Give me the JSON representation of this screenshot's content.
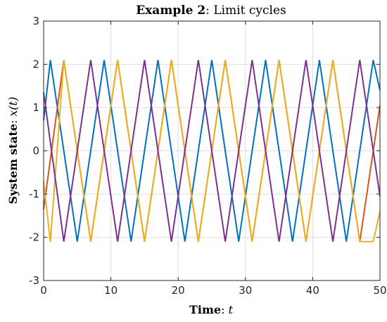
{
  "chart_data": {
    "type": "line",
    "title": {
      "bold": "Example 2",
      "rest": ": Limit cycles"
    },
    "xlabel": {
      "bold": "Time",
      "sep": ": ",
      "var": "t"
    },
    "ylabel": {
      "bold": "System state",
      "sep": ": ",
      "var": "x(t)"
    },
    "xlim": [
      0,
      50
    ],
    "ylim": [
      -3,
      3
    ],
    "xticks": [
      0,
      10,
      20,
      30,
      40,
      50
    ],
    "yticks": [
      -3,
      -2,
      -1,
      0,
      1,
      2,
      3
    ],
    "xtick_labels": [
      "0",
      "10",
      "20",
      "30",
      "40",
      "50"
    ],
    "ytick_labels": [
      "-3",
      "-2",
      "-1",
      "0",
      "1",
      "2",
      "3"
    ],
    "grid": true,
    "legend": "none",
    "series": [
      {
        "color": "#0072BD",
        "x": [
          0,
          1,
          5,
          9,
          13,
          17,
          21,
          25,
          29,
          33,
          37,
          41,
          45,
          49,
          50
        ],
        "y": [
          0.7,
          2.1,
          -2.1,
          2.1,
          -2.1,
          2.1,
          -2.1,
          2.1,
          -2.1,
          2.1,
          -2.1,
          2.1,
          -2.1,
          2.1,
          1.4
        ]
      },
      {
        "color": "#D95319",
        "x": [
          0,
          3,
          7,
          11,
          15,
          19,
          23,
          27,
          31,
          35,
          39,
          43,
          47,
          50
        ],
        "y": [
          -1.35,
          2.1,
          -2.1,
          2.1,
          -2.1,
          2.1,
          -2.1,
          2.1,
          -2.1,
          2.1,
          -2.1,
          2.1,
          -2.1,
          1.05
        ]
      },
      {
        "color": "#EDB120",
        "x": [
          0,
          1,
          3,
          7,
          11,
          15,
          19,
          23,
          27,
          31,
          35,
          39,
          43,
          47,
          49,
          50
        ],
        "y": [
          -0.7,
          -2.1,
          2.1,
          -2.1,
          2.1,
          -2.1,
          2.1,
          -2.1,
          2.1,
          -2.1,
          2.1,
          -2.1,
          2.1,
          -2.1,
          -2.1,
          -1.4
        ]
      },
      {
        "color": "#7E2F8E",
        "x": [
          0,
          3,
          7,
          11,
          15,
          19,
          23,
          27,
          31,
          35,
          39,
          43,
          47,
          50
        ],
        "y": [
          1.35,
          -2.1,
          2.1,
          -2.1,
          2.1,
          -2.1,
          2.1,
          -2.1,
          2.1,
          -2.1,
          2.1,
          -2.1,
          2.1,
          -1.05
        ]
      }
    ]
  }
}
